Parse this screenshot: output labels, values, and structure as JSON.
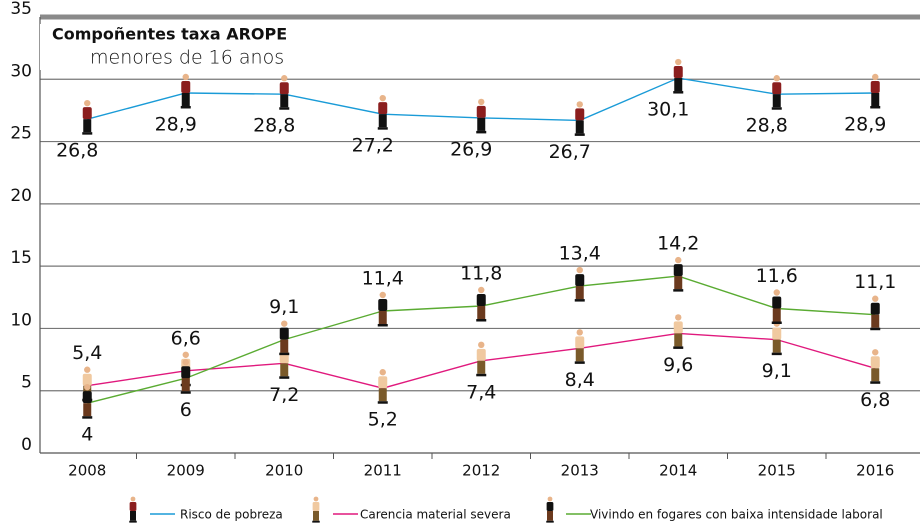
{
  "chart_data": {
    "type": "line",
    "title": "Compoñentes taxa AROPE",
    "subtitle": "menores de 16 anos",
    "categories": [
      "2008",
      "2009",
      "2010",
      "2011",
      "2012",
      "2013",
      "2014",
      "2015",
      "2016"
    ],
    "series": [
      {
        "name": "Risco de pobreza",
        "color": "#1a9bd7",
        "values": [
          26.8,
          28.9,
          28.8,
          27.2,
          26.9,
          26.7,
          30.1,
          28.8,
          28.9
        ],
        "value_labels": [
          "26,8",
          "28,9",
          "28,8",
          "27,2",
          "26,9",
          "26,7",
          "30,1",
          "28,8",
          "28,9"
        ]
      },
      {
        "name": "Carencia material severa",
        "color": "#e0197d",
        "values": [
          5.4,
          6.6,
          7.2,
          5.2,
          7.4,
          8.4,
          9.6,
          9.1,
          6.8
        ],
        "value_labels": [
          "5,4",
          "6,6",
          "7,2",
          "5,2",
          "7,4",
          "8,4",
          "9,6",
          "9,1",
          "6,8"
        ]
      },
      {
        "name": "Vivindo en fogares con baixa intensidade laboral",
        "color": "#5aab32",
        "values": [
          4,
          6,
          9.1,
          11.4,
          11.8,
          13.4,
          14.2,
          11.6,
          11.1
        ],
        "value_labels": [
          "4",
          "6",
          "9,1",
          "11,4",
          "11,8",
          "13,4",
          "14,2",
          "11,6",
          "11,1"
        ]
      }
    ],
    "ylim": [
      0,
      35
    ],
    "yticks": [
      0,
      5,
      10,
      15,
      20,
      25,
      30,
      35
    ],
    "grid": true
  }
}
